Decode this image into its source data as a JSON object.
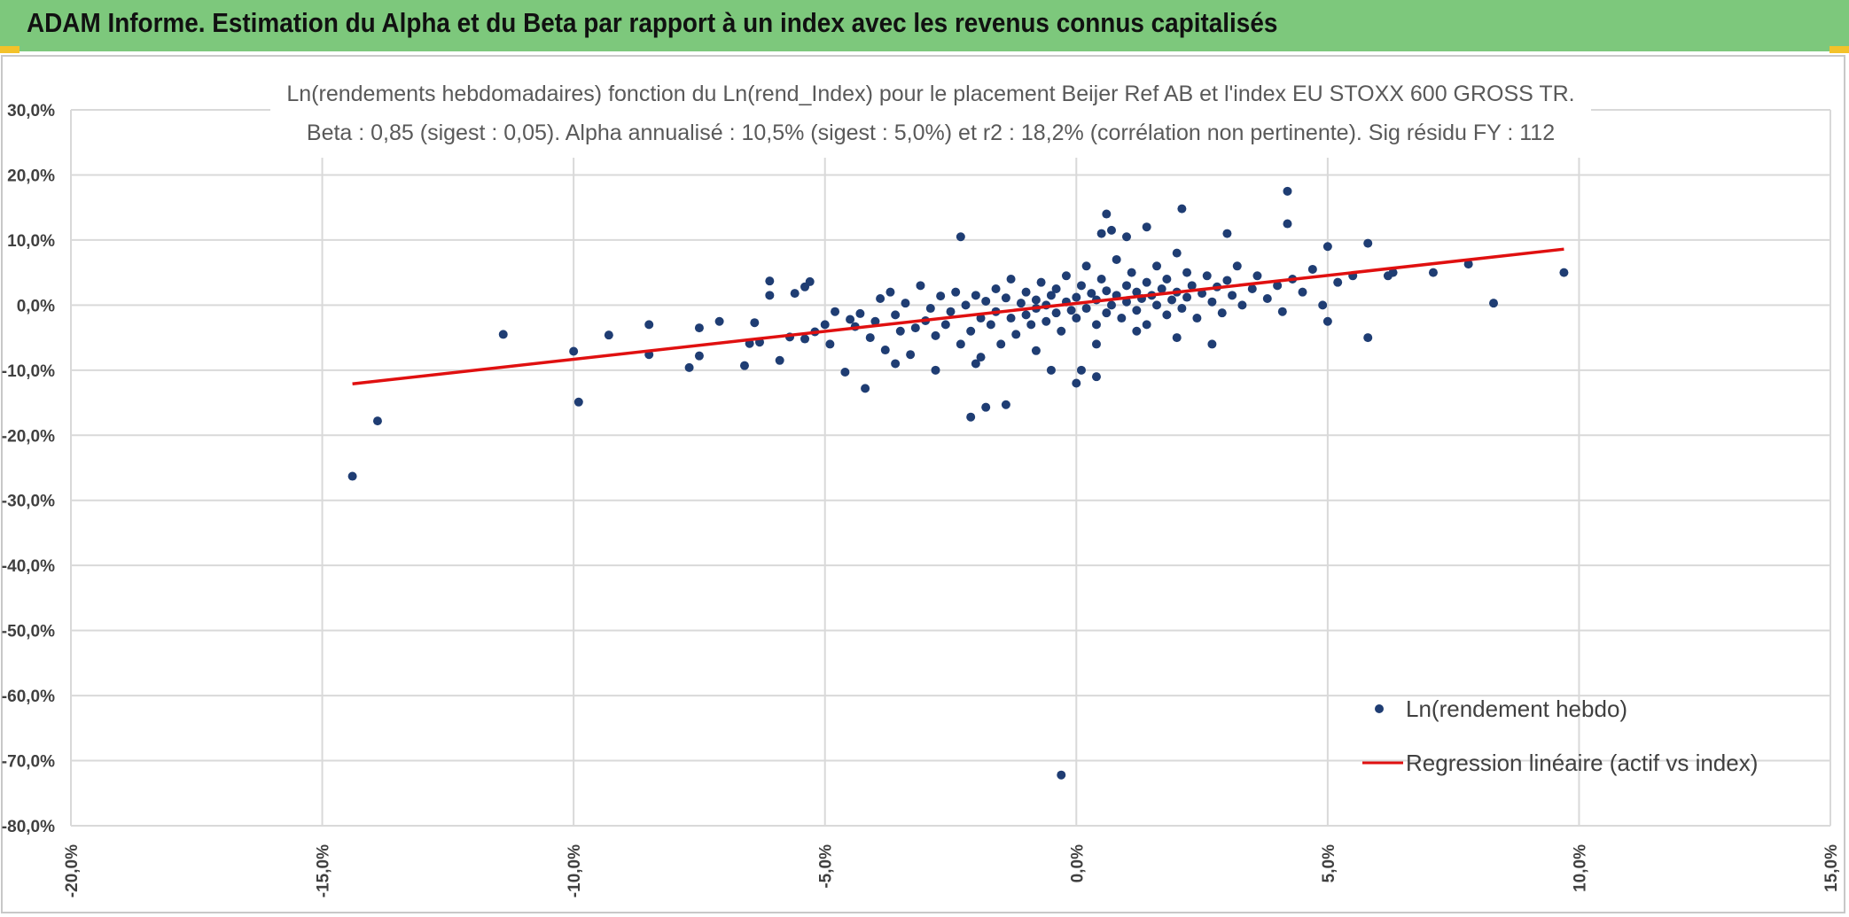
{
  "header": {
    "title": "ADAM Informe. Estimation du Alpha et du Beta par rapport à un index avec les revenus connus capitalisés"
  },
  "colors": {
    "header_bg": "#7dc87c",
    "points": "#1f3d73",
    "regression": "#e01010",
    "grid": "#d9d9d9",
    "accent_corner": "#f3c22a"
  },
  "chart_data": {
    "type": "scatter",
    "title": "Ln(rendements hebdomadaires) fonction du Ln(rend_Index) pour le placement Beijer Ref AB et l'index EU STOXX 600 GROSS TR.",
    "subtitle": "Beta : 0,85 (sigest : 0,05). Alpha annualisé : 10,5% (sigest : 5,0%) et r2 : 18,2% (corrélation non pertinente). Sig résidu FY : 112",
    "xlabel": "",
    "ylabel": "",
    "xlim": [
      -0.2,
      0.15
    ],
    "ylim": [
      -0.8,
      0.3
    ],
    "x_ticks": [
      "-20,0%",
      "-15,0%",
      "-10,0%",
      "-5,0%",
      "0,0%",
      "5,0%",
      "10,0%",
      "15,0%"
    ],
    "y_ticks": [
      "30,0%",
      "20,0%",
      "10,0%",
      "0,0%",
      "-10,0%",
      "-20,0%",
      "-30,0%",
      "-40,0%",
      "-50,0%",
      "-60,0%",
      "-70,0%",
      "-80,0%"
    ],
    "grid": true,
    "legend_position": "bottom-right",
    "series": [
      {
        "name": "Ln(rendement hebdo)",
        "kind": "scatter",
        "points": [
          [
            -0.144,
            -0.263
          ],
          [
            -0.139,
            -0.178
          ],
          [
            -0.114,
            -0.045
          ],
          [
            -0.1,
            -0.071
          ],
          [
            -0.099,
            -0.149
          ],
          [
            -0.093,
            -0.046
          ],
          [
            -0.085,
            -0.076
          ],
          [
            -0.085,
            -0.03
          ],
          [
            -0.077,
            -0.096
          ],
          [
            -0.075,
            -0.035
          ],
          [
            -0.075,
            -0.078
          ],
          [
            -0.071,
            -0.025
          ],
          [
            -0.066,
            -0.093
          ],
          [
            -0.065,
            -0.059
          ],
          [
            -0.064,
            -0.027
          ],
          [
            -0.063,
            -0.057
          ],
          [
            -0.061,
            0.015
          ],
          [
            -0.061,
            0.037
          ],
          [
            -0.059,
            -0.085
          ],
          [
            -0.057,
            -0.049
          ],
          [
            -0.056,
            0.018
          ],
          [
            -0.054,
            0.028
          ],
          [
            -0.054,
            -0.052
          ],
          [
            -0.053,
            0.036
          ],
          [
            -0.052,
            -0.041
          ],
          [
            -0.05,
            -0.03
          ],
          [
            -0.049,
            -0.06
          ],
          [
            -0.048,
            -0.01
          ],
          [
            -0.046,
            -0.103
          ],
          [
            -0.045,
            -0.022
          ],
          [
            -0.044,
            -0.033
          ],
          [
            -0.043,
            -0.013
          ],
          [
            -0.042,
            -0.128
          ],
          [
            -0.041,
            -0.05
          ],
          [
            -0.04,
            -0.025
          ],
          [
            -0.039,
            0.01
          ],
          [
            -0.038,
            -0.069
          ],
          [
            -0.037,
            0.02
          ],
          [
            -0.036,
            -0.015
          ],
          [
            -0.036,
            -0.09
          ],
          [
            -0.035,
            -0.04
          ],
          [
            -0.034,
            0.003
          ],
          [
            -0.033,
            -0.076
          ],
          [
            -0.032,
            -0.035
          ],
          [
            -0.031,
            0.03
          ],
          [
            -0.03,
            -0.024
          ],
          [
            -0.029,
            -0.005
          ],
          [
            -0.028,
            -0.1
          ],
          [
            -0.028,
            -0.047
          ],
          [
            -0.027,
            0.014
          ],
          [
            -0.026,
            -0.03
          ],
          [
            -0.025,
            -0.01
          ],
          [
            -0.024,
            0.02
          ],
          [
            -0.023,
            -0.06
          ],
          [
            -0.023,
            0.105
          ],
          [
            -0.022,
            0.0
          ],
          [
            -0.021,
            -0.04
          ],
          [
            -0.02,
            0.015
          ],
          [
            -0.019,
            -0.08
          ],
          [
            -0.019,
            -0.02
          ],
          [
            -0.018,
            0.006
          ],
          [
            -0.017,
            -0.03
          ],
          [
            -0.016,
            0.025
          ],
          [
            -0.016,
            -0.01
          ],
          [
            -0.015,
            -0.06
          ],
          [
            -0.014,
            0.011
          ],
          [
            -0.013,
            -0.02
          ],
          [
            -0.013,
            0.04
          ],
          [
            -0.012,
            -0.045
          ],
          [
            -0.011,
            0.003
          ],
          [
            -0.01,
            -0.015
          ],
          [
            -0.01,
            0.02
          ],
          [
            -0.009,
            -0.03
          ],
          [
            -0.008,
            0.008
          ],
          [
            -0.008,
            -0.005
          ],
          [
            -0.007,
            0.035
          ],
          [
            -0.006,
            -0.025
          ],
          [
            -0.006,
            0.0
          ],
          [
            -0.005,
            0.015
          ],
          [
            -0.004,
            -0.012
          ],
          [
            -0.004,
            0.025
          ],
          [
            -0.003,
            -0.04
          ],
          [
            -0.002,
            0.005
          ],
          [
            -0.002,
            0.045
          ],
          [
            -0.001,
            -0.008
          ],
          [
            0.0,
            0.012
          ],
          [
            0.0,
            -0.02
          ],
          [
            0.001,
            0.03
          ],
          [
            0.002,
            -0.005
          ],
          [
            0.002,
            0.06
          ],
          [
            0.003,
            0.018
          ],
          [
            0.004,
            -0.03
          ],
          [
            0.004,
            0.008
          ],
          [
            0.005,
            0.04
          ],
          [
            0.006,
            -0.012
          ],
          [
            0.006,
            0.022
          ],
          [
            0.007,
            0.0
          ],
          [
            0.008,
            0.07
          ],
          [
            0.008,
            0.015
          ],
          [
            0.009,
            -0.02
          ],
          [
            0.01,
            0.03
          ],
          [
            0.01,
            0.005
          ],
          [
            0.011,
            0.05
          ],
          [
            0.012,
            -0.008
          ],
          [
            0.012,
            0.02
          ],
          [
            0.013,
            0.01
          ],
          [
            0.014,
            0.035
          ],
          [
            0.014,
            -0.03
          ],
          [
            0.015,
            0.015
          ],
          [
            0.016,
            0.06
          ],
          [
            0.016,
            0.0
          ],
          [
            0.017,
            0.025
          ],
          [
            0.018,
            -0.015
          ],
          [
            0.018,
            0.04
          ],
          [
            0.019,
            0.008
          ],
          [
            0.02,
            0.02
          ],
          [
            0.021,
            -0.005
          ],
          [
            0.022,
            0.05
          ],
          [
            0.022,
            0.012
          ],
          [
            0.023,
            0.03
          ],
          [
            0.024,
            -0.02
          ],
          [
            0.025,
            0.018
          ],
          [
            0.026,
            0.045
          ],
          [
            0.027,
            0.005
          ],
          [
            0.028,
            0.028
          ],
          [
            0.029,
            -0.012
          ],
          [
            0.03,
            0.038
          ],
          [
            0.031,
            0.015
          ],
          [
            0.032,
            0.06
          ],
          [
            0.033,
            0.0
          ],
          [
            0.035,
            0.025
          ],
          [
            0.036,
            0.045
          ],
          [
            0.038,
            0.01
          ],
          [
            0.04,
            0.03
          ],
          [
            0.041,
            -0.01
          ],
          [
            0.043,
            0.04
          ],
          [
            0.045,
            0.02
          ],
          [
            0.047,
            0.055
          ],
          [
            0.049,
            0.0
          ],
          [
            0.05,
            0.09
          ],
          [
            0.05,
            -0.025
          ],
          [
            0.052,
            0.035
          ],
          [
            0.055,
            0.045
          ],
          [
            0.058,
            0.095
          ],
          [
            0.058,
            -0.05
          ],
          [
            0.062,
            0.045
          ],
          [
            0.063,
            0.05
          ],
          [
            0.071,
            0.05
          ],
          [
            0.078,
            0.063
          ],
          [
            0.083,
            0.003
          ],
          [
            0.097,
            0.05
          ],
          [
            0.042,
            0.125
          ],
          [
            0.042,
            0.175
          ],
          [
            0.021,
            0.148
          ],
          [
            0.014,
            0.12
          ],
          [
            0.007,
            0.115
          ],
          [
            0.006,
            0.14
          ],
          [
            0.01,
            0.105
          ],
          [
            0.005,
            0.11
          ],
          [
            0.02,
            0.08
          ],
          [
            0.03,
            0.11
          ],
          [
            0.001,
            -0.1
          ],
          [
            0.0,
            -0.12
          ],
          [
            0.004,
            -0.11
          ],
          [
            -0.005,
            -0.1
          ],
          [
            -0.014,
            -0.153
          ],
          [
            -0.018,
            -0.157
          ],
          [
            -0.021,
            -0.172
          ],
          [
            -0.003,
            -0.722
          ],
          [
            -0.008,
            -0.07
          ],
          [
            -0.02,
            -0.09
          ],
          [
            0.004,
            -0.06
          ],
          [
            0.012,
            -0.04
          ],
          [
            0.02,
            -0.05
          ],
          [
            0.027,
            -0.06
          ]
        ]
      },
      {
        "name": "Regression linéaire (actif vs index)",
        "kind": "line",
        "points": [
          [
            -0.144,
            -0.121
          ],
          [
            0.097,
            0.086
          ]
        ]
      }
    ],
    "legend": [
      "Ln(rendement hebdo)",
      "Regression linéaire (actif vs index)"
    ]
  }
}
